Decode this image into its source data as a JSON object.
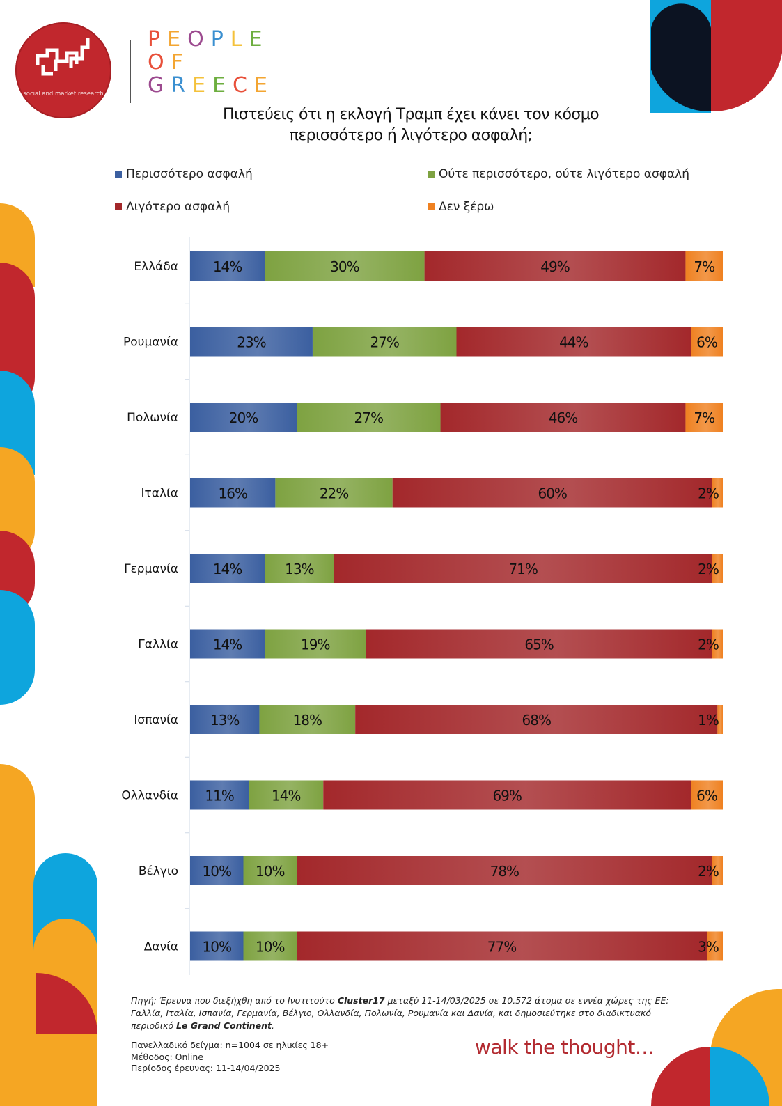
{
  "brand": {
    "logo_text": "social and market research",
    "name_lines": [
      {
        "letters": [
          "P",
          "E",
          "O",
          "P",
          "L",
          "E"
        ]
      },
      {
        "letters": [
          "O",
          "F"
        ]
      },
      {
        "letters": [
          "G",
          "R",
          "E",
          "E",
          "C",
          "E"
        ]
      }
    ],
    "letter_colors": [
      "#e8503a",
      "#f3a531",
      "#9c4a8f",
      "#3a8fd0",
      "#f4c13a",
      "#6dae3f"
    ]
  },
  "title_lines": [
    "Πιστεύεις ότι η εκλογή Τραμπ έχει κάνει τον κόσμο",
    "περισσότερο ή λιγότερο ασφαλή;"
  ],
  "legend": [
    {
      "label": "Περισσότερο ασφαλή",
      "color": "#3b5fa0"
    },
    {
      "label": "Ούτε περισσότερο, ούτε λιγότερο ασφαλή",
      "color": "#7ea241"
    },
    {
      "label": "Λιγότερο ασφαλή",
      "color": "#a3282b"
    },
    {
      "label": "Δεν ξέρω",
      "color": "#ef8121"
    }
  ],
  "chart_data": {
    "type": "bar",
    "orientation": "horizontal",
    "stacked": true,
    "categories": [
      "Ελλάδα",
      "Ρουμανία",
      "Πολωνία",
      "Ιταλία",
      "Γερμανία",
      "Γαλλία",
      "Ισπανία",
      "Ολλανδία",
      "Βέλγιο",
      "Δανία"
    ],
    "series": [
      {
        "name": "Περισσότερο ασφαλή",
        "color": "#3b5fa0",
        "values": [
          14,
          23,
          20,
          16,
          14,
          14,
          13,
          11,
          10,
          10
        ]
      },
      {
        "name": "Ούτε περισσότερο, ούτε λιγότερο ασφαλή",
        "color": "#7ea241",
        "values": [
          30,
          27,
          27,
          22,
          13,
          19,
          18,
          14,
          10,
          10
        ]
      },
      {
        "name": "Λιγότερο ασφαλή",
        "color": "#a3282b",
        "values": [
          49,
          44,
          46,
          60,
          71,
          65,
          68,
          69,
          78,
          77
        ]
      },
      {
        "name": "Δεν ξέρω",
        "color": "#ef8121",
        "values": [
          7,
          6,
          7,
          2,
          2,
          2,
          1,
          6,
          2,
          3
        ]
      }
    ],
    "value_suffix": "%",
    "legend_position": "top",
    "grid": false
  },
  "footer": {
    "source_parts": [
      {
        "text": "Πηγή: Έρευνα που διεξήχθη από το Ινστιτούτο ",
        "bold": false
      },
      {
        "text": "Cluster17",
        "bold": true
      },
      {
        "text": " μεταξύ 11-14/03/2025 σε 10.572 άτομα σε εννέα χώρες της ΕΕ: Γαλλία, Ιταλία, Ισπανία, Γερμανία, Βέλγιο, Ολλανδία, Πολωνία, Ρουμανία και Δανία, και δημοσιεύτηκε στο διαδικτυακό περιοδικό ",
        "bold": false
      },
      {
        "text": "Le Grand Continent",
        "bold": true
      },
      {
        "text": ".",
        "bold": false
      }
    ],
    "meta_lines": [
      "Πανελλαδικό δείγμα: n=1004 σε ηλικίες 18+",
      "Μέθοδος: Online",
      "Περίοδος έρευνας: 11-14/04/2025"
    ]
  },
  "tagline": "walk the thought…",
  "decor_colors": {
    "red": "#c1272d",
    "blue": "#0ea5dd",
    "orange": "#f5a623",
    "navy": "#0c1322"
  }
}
